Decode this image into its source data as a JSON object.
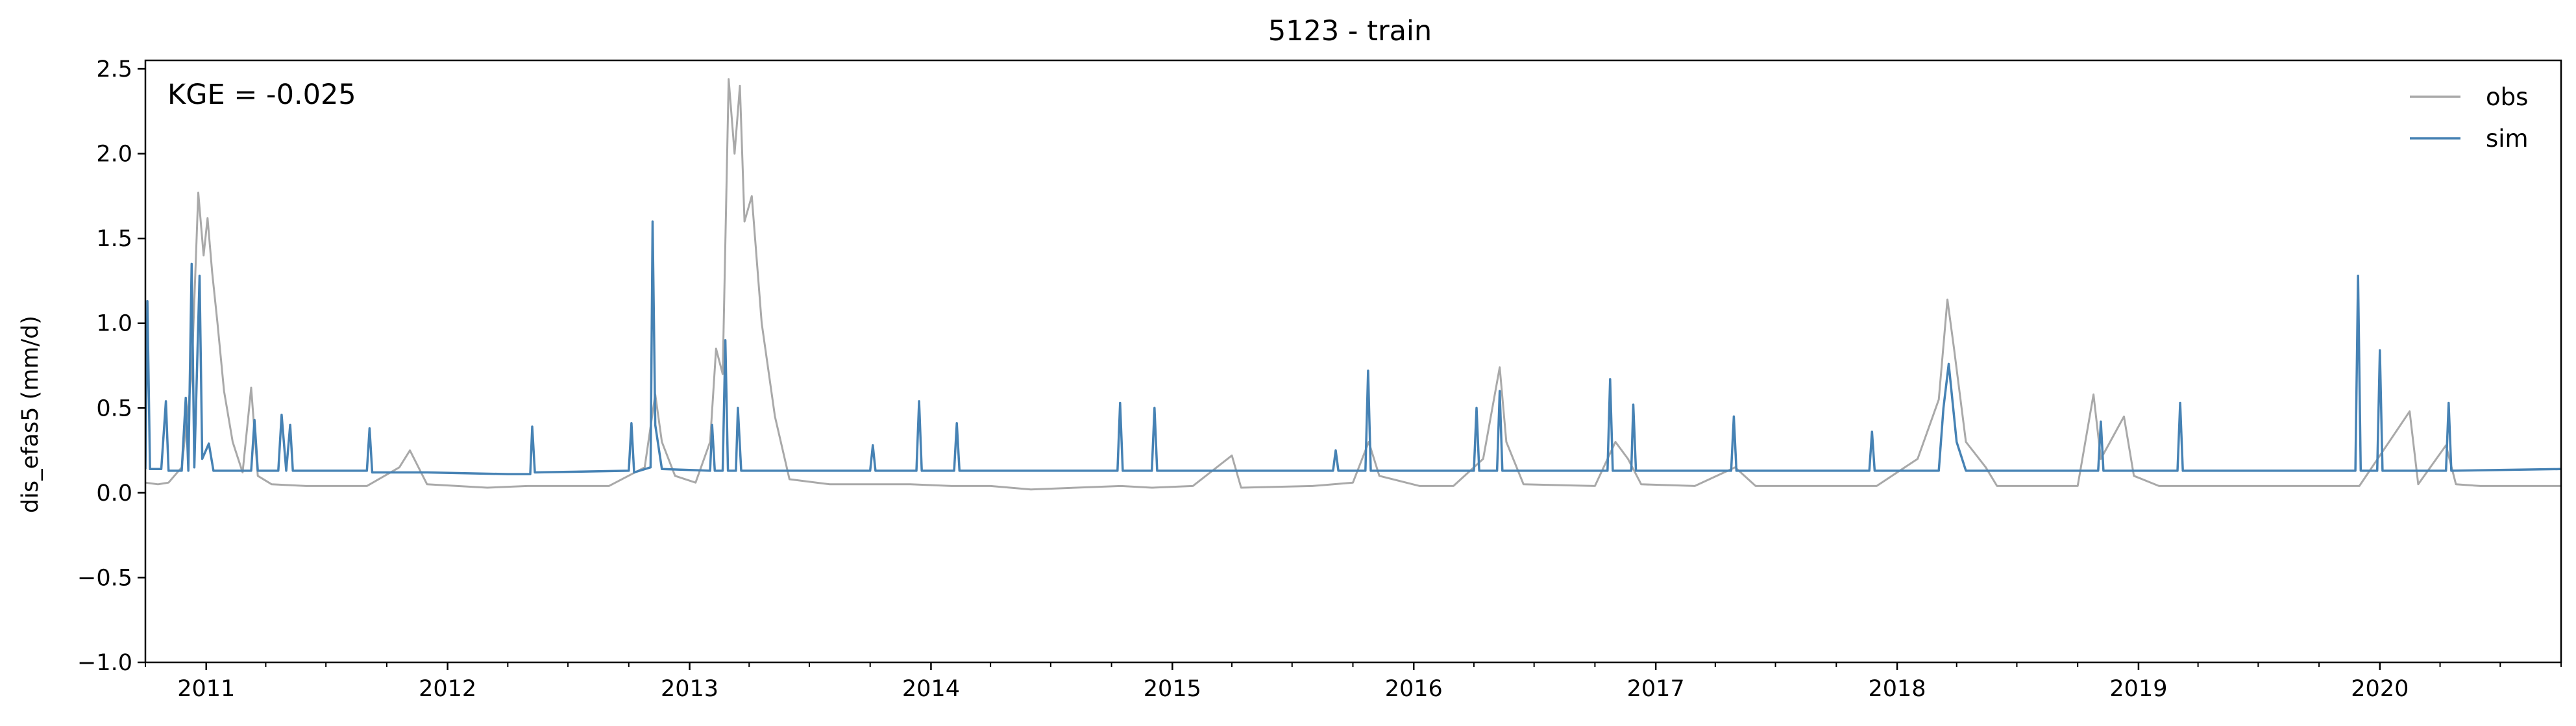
{
  "chart_data": {
    "type": "line",
    "title": "5123 - train",
    "ylabel": "dis_efas5 (mm/d)",
    "xlabel": "",
    "annotation": "KGE = -0.025",
    "annotation_position": "top-left",
    "legend_position": "top-right",
    "grid": false,
    "xlim": [
      "2010-10-01",
      "2020-10-01"
    ],
    "ylim": [
      -1.0,
      2.55
    ],
    "y_ticks": [
      -1.0,
      -0.5,
      0.0,
      0.5,
      1.0,
      1.5,
      2.0,
      2.5
    ],
    "y_tick_labels": [
      "−1.0",
      "−0.5",
      "0.0",
      "0.5",
      "1.0",
      "1.5",
      "2.0",
      "2.5"
    ],
    "x_tick_dates": [
      "2011-01-01",
      "2012-01-01",
      "2013-01-01",
      "2014-01-01",
      "2015-01-01",
      "2016-01-01",
      "2017-01-01",
      "2018-01-01",
      "2019-01-01",
      "2020-01-01"
    ],
    "x_tick_labels": [
      "2011",
      "2012",
      "2013",
      "2014",
      "2015",
      "2016",
      "2017",
      "2018",
      "2019",
      "2020"
    ],
    "series": [
      {
        "name": "obs",
        "color": "#a9a9a9",
        "points": [
          [
            "2010-10-01",
            0.06
          ],
          [
            "2010-10-20",
            0.05
          ],
          [
            "2010-11-05",
            0.06
          ],
          [
            "2010-11-25",
            0.15
          ],
          [
            "2010-12-10",
            0.7
          ],
          [
            "2010-12-20",
            1.77
          ],
          [
            "2010-12-28",
            1.4
          ],
          [
            "2011-01-03",
            1.62
          ],
          [
            "2011-01-10",
            1.3
          ],
          [
            "2011-01-18",
            1.0
          ],
          [
            "2011-01-28",
            0.6
          ],
          [
            "2011-02-10",
            0.3
          ],
          [
            "2011-02-25",
            0.12
          ],
          [
            "2011-03-10",
            0.62
          ],
          [
            "2011-03-20",
            0.1
          ],
          [
            "2011-04-10",
            0.05
          ],
          [
            "2011-06-01",
            0.04
          ],
          [
            "2011-09-01",
            0.04
          ],
          [
            "2011-10-20",
            0.15
          ],
          [
            "2011-11-05",
            0.25
          ],
          [
            "2011-12-01",
            0.05
          ],
          [
            "2012-03-01",
            0.03
          ],
          [
            "2012-05-01",
            0.04
          ],
          [
            "2012-09-01",
            0.04
          ],
          [
            "2012-10-25",
            0.15
          ],
          [
            "2012-11-10",
            0.58
          ],
          [
            "2012-11-20",
            0.3
          ],
          [
            "2012-12-10",
            0.1
          ],
          [
            "2013-01-10",
            0.06
          ],
          [
            "2013-02-01",
            0.3
          ],
          [
            "2013-02-10",
            0.85
          ],
          [
            "2013-02-20",
            0.7
          ],
          [
            "2013-03-01",
            2.44
          ],
          [
            "2013-03-10",
            2.0
          ],
          [
            "2013-03-18",
            2.4
          ],
          [
            "2013-03-25",
            1.6
          ],
          [
            "2013-04-05",
            1.75
          ],
          [
            "2013-04-20",
            1.0
          ],
          [
            "2013-05-10",
            0.45
          ],
          [
            "2013-06-01",
            0.08
          ],
          [
            "2013-08-01",
            0.05
          ],
          [
            "2013-10-01",
            0.05
          ],
          [
            "2013-12-01",
            0.05
          ],
          [
            "2014-02-01",
            0.04
          ],
          [
            "2014-04-01",
            0.04
          ],
          [
            "2014-06-01",
            0.02
          ],
          [
            "2014-10-15",
            0.04
          ],
          [
            "2014-12-01",
            0.03
          ],
          [
            "2015-02-01",
            0.04
          ],
          [
            "2015-04-01",
            0.22
          ],
          [
            "2015-04-15",
            0.03
          ],
          [
            "2015-08-01",
            0.04
          ],
          [
            "2015-10-01",
            0.06
          ],
          [
            "2015-10-25",
            0.3
          ],
          [
            "2015-11-10",
            0.1
          ],
          [
            "2016-01-10",
            0.04
          ],
          [
            "2016-03-01",
            0.04
          ],
          [
            "2016-04-15",
            0.2
          ],
          [
            "2016-05-10",
            0.74
          ],
          [
            "2016-05-20",
            0.3
          ],
          [
            "2016-06-15",
            0.05
          ],
          [
            "2016-10-01",
            0.04
          ],
          [
            "2016-11-01",
            0.3
          ],
          [
            "2016-11-20",
            0.2
          ],
          [
            "2016-12-10",
            0.05
          ],
          [
            "2017-03-01",
            0.04
          ],
          [
            "2017-05-01",
            0.15
          ],
          [
            "2017-06-01",
            0.04
          ],
          [
            "2017-10-01",
            0.04
          ],
          [
            "2017-12-01",
            0.04
          ],
          [
            "2018-02-01",
            0.2
          ],
          [
            "2018-03-05",
            0.55
          ],
          [
            "2018-03-18",
            1.14
          ],
          [
            "2018-03-28",
            0.85
          ],
          [
            "2018-04-15",
            0.3
          ],
          [
            "2018-05-15",
            0.15
          ],
          [
            "2018-06-01",
            0.04
          ],
          [
            "2018-10-01",
            0.04
          ],
          [
            "2018-10-25",
            0.58
          ],
          [
            "2018-11-05",
            0.2
          ],
          [
            "2018-12-10",
            0.45
          ],
          [
            "2018-12-25",
            0.1
          ],
          [
            "2019-02-01",
            0.04
          ],
          [
            "2019-05-01",
            0.04
          ],
          [
            "2019-09-01",
            0.04
          ],
          [
            "2019-12-01",
            0.04
          ],
          [
            "2020-02-15",
            0.48
          ],
          [
            "2020-02-28",
            0.05
          ],
          [
            "2020-04-10",
            0.28
          ],
          [
            "2020-04-25",
            0.05
          ],
          [
            "2020-06-01",
            0.04
          ],
          [
            "2020-10-01",
            0.04
          ]
        ]
      },
      {
        "name": "sim",
        "color": "#4682b4",
        "points": [
          [
            "2010-10-01",
            0.14
          ],
          [
            "2010-10-04",
            1.13
          ],
          [
            "2010-10-08",
            0.14
          ],
          [
            "2010-10-25",
            0.14
          ],
          [
            "2010-11-01",
            0.54
          ],
          [
            "2010-11-05",
            0.13
          ],
          [
            "2010-11-25",
            0.13
          ],
          [
            "2010-12-01",
            0.56
          ],
          [
            "2010-12-05",
            0.13
          ],
          [
            "2010-12-10",
            1.35
          ],
          [
            "2010-12-14",
            0.15
          ],
          [
            "2010-12-22",
            1.28
          ],
          [
            "2010-12-26",
            0.2
          ],
          [
            "2011-01-05",
            0.29
          ],
          [
            "2011-01-12",
            0.13
          ],
          [
            "2011-03-10",
            0.13
          ],
          [
            "2011-03-15",
            0.43
          ],
          [
            "2011-03-20",
            0.13
          ],
          [
            "2011-04-20",
            0.13
          ],
          [
            "2011-04-25",
            0.46
          ],
          [
            "2011-05-02",
            0.13
          ],
          [
            "2011-05-08",
            0.4
          ],
          [
            "2011-05-12",
            0.13
          ],
          [
            "2011-09-01",
            0.13
          ],
          [
            "2011-09-05",
            0.38
          ],
          [
            "2011-09-09",
            0.12
          ],
          [
            "2011-12-01",
            0.12
          ],
          [
            "2012-04-01",
            0.11
          ],
          [
            "2012-05-05",
            0.11
          ],
          [
            "2012-05-08",
            0.39
          ],
          [
            "2012-05-12",
            0.12
          ],
          [
            "2012-10-01",
            0.13
          ],
          [
            "2012-10-05",
            0.41
          ],
          [
            "2012-10-09",
            0.12
          ],
          [
            "2012-11-03",
            0.15
          ],
          [
            "2012-11-06",
            1.6
          ],
          [
            "2012-11-10",
            0.4
          ],
          [
            "2012-11-20",
            0.14
          ],
          [
            "2013-02-01",
            0.13
          ],
          [
            "2013-02-04",
            0.4
          ],
          [
            "2013-02-08",
            0.13
          ],
          [
            "2013-02-20",
            0.13
          ],
          [
            "2013-02-24",
            0.9
          ],
          [
            "2013-02-28",
            0.13
          ],
          [
            "2013-03-12",
            0.13
          ],
          [
            "2013-03-15",
            0.5
          ],
          [
            "2013-03-20",
            0.13
          ],
          [
            "2013-06-01",
            0.13
          ],
          [
            "2013-10-01",
            0.13
          ],
          [
            "2013-10-05",
            0.28
          ],
          [
            "2013-10-09",
            0.13
          ],
          [
            "2013-12-10",
            0.13
          ],
          [
            "2013-12-14",
            0.54
          ],
          [
            "2013-12-18",
            0.13
          ],
          [
            "2014-02-05",
            0.13
          ],
          [
            "2014-02-09",
            0.41
          ],
          [
            "2014-02-13",
            0.13
          ],
          [
            "2014-10-10",
            0.13
          ],
          [
            "2014-10-14",
            0.53
          ],
          [
            "2014-10-18",
            0.13
          ],
          [
            "2014-12-01",
            0.13
          ],
          [
            "2014-12-05",
            0.5
          ],
          [
            "2014-12-09",
            0.13
          ],
          [
            "2015-09-01",
            0.13
          ],
          [
            "2015-09-05",
            0.25
          ],
          [
            "2015-09-09",
            0.13
          ],
          [
            "2015-10-20",
            0.13
          ],
          [
            "2015-10-24",
            0.72
          ],
          [
            "2015-10-28",
            0.13
          ],
          [
            "2016-04-01",
            0.13
          ],
          [
            "2016-04-05",
            0.5
          ],
          [
            "2016-04-09",
            0.13
          ],
          [
            "2016-05-06",
            0.13
          ],
          [
            "2016-05-10",
            0.6
          ],
          [
            "2016-05-14",
            0.13
          ],
          [
            "2016-10-20",
            0.13
          ],
          [
            "2016-10-24",
            0.67
          ],
          [
            "2016-10-28",
            0.13
          ],
          [
            "2016-11-25",
            0.13
          ],
          [
            "2016-11-28",
            0.52
          ],
          [
            "2016-12-02",
            0.13
          ],
          [
            "2017-04-25",
            0.13
          ],
          [
            "2017-04-29",
            0.45
          ],
          [
            "2017-05-03",
            0.13
          ],
          [
            "2017-11-20",
            0.13
          ],
          [
            "2017-11-24",
            0.36
          ],
          [
            "2017-11-28",
            0.13
          ],
          [
            "2018-03-05",
            0.13
          ],
          [
            "2018-03-12",
            0.5
          ],
          [
            "2018-03-20",
            0.76
          ],
          [
            "2018-04-01",
            0.3
          ],
          [
            "2018-04-15",
            0.13
          ],
          [
            "2018-11-01",
            0.13
          ],
          [
            "2018-11-05",
            0.42
          ],
          [
            "2018-11-09",
            0.13
          ],
          [
            "2019-03-01",
            0.13
          ],
          [
            "2019-03-05",
            0.53
          ],
          [
            "2019-03-09",
            0.13
          ],
          [
            "2019-11-25",
            0.13
          ],
          [
            "2019-11-29",
            1.28
          ],
          [
            "2019-12-03",
            0.13
          ],
          [
            "2019-12-28",
            0.13
          ],
          [
            "2020-01-01",
            0.84
          ],
          [
            "2020-01-05",
            0.13
          ],
          [
            "2020-04-10",
            0.13
          ],
          [
            "2020-04-14",
            0.53
          ],
          [
            "2020-04-18",
            0.13
          ],
          [
            "2020-10-01",
            0.14
          ]
        ]
      }
    ]
  }
}
